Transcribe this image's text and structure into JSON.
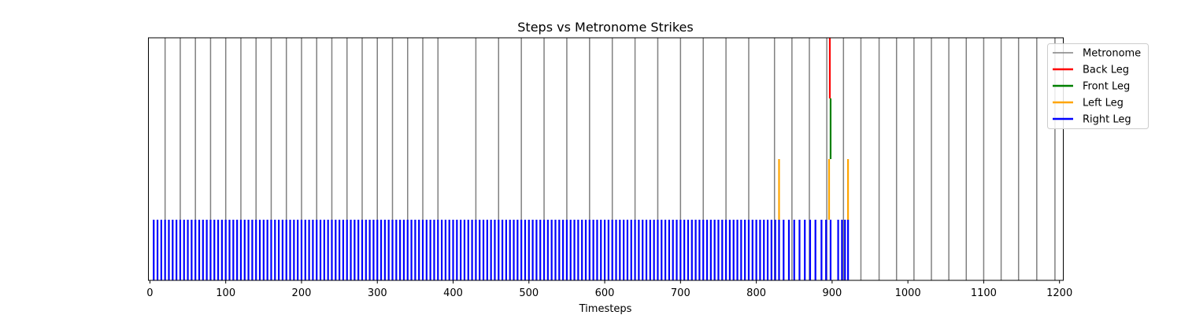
{
  "chart_data": {
    "type": "event_plot",
    "title": "Steps vs Metronome Strikes",
    "xlabel": "Timesteps",
    "ylabel": "",
    "xlim": [
      -2,
      1205
    ],
    "ylim": [
      0,
      4
    ],
    "xticks": [
      0,
      100,
      200,
      300,
      400,
      500,
      600,
      700,
      800,
      900,
      1000,
      1100,
      1200
    ],
    "grid": false,
    "legend_position": "upper-right-outside",
    "series": [
      {
        "name": "Metronome",
        "color": "#808080",
        "y_range": [
          0,
          4
        ],
        "x": [
          20,
          40,
          60,
          80,
          100,
          120,
          140,
          160,
          180,
          200,
          220,
          240,
          260,
          280,
          300,
          320,
          340,
          360,
          380,
          430,
          460,
          490,
          520,
          550,
          580,
          610,
          640,
          670,
          700,
          730,
          760,
          790,
          824,
          847,
          870,
          893,
          915,
          938,
          962,
          985,
          1008,
          1031,
          1054,
          1077,
          1100,
          1123,
          1146,
          1170,
          1194
        ]
      },
      {
        "name": "Back Leg",
        "color": "#ff0000",
        "y_range": [
          3,
          4
        ],
        "x": [
          897
        ]
      },
      {
        "name": "Front Leg",
        "color": "#008000",
        "y_range": [
          2,
          3
        ],
        "x": [
          898
        ]
      },
      {
        "name": "Left Leg",
        "color": "#ffa500",
        "y_range": [
          1,
          2
        ],
        "x": [
          830,
          896,
          921
        ]
      },
      {
        "name": "Right Leg",
        "color": "#0000ff",
        "y_range": [
          0,
          1
        ],
        "x_regular": {
          "start": 5,
          "step": 5,
          "end": 830
        },
        "x_extra": [
          836,
          843,
          850,
          857,
          864,
          871,
          878,
          886,
          892,
          898,
          908,
          913,
          917,
          921
        ]
      }
    ]
  }
}
